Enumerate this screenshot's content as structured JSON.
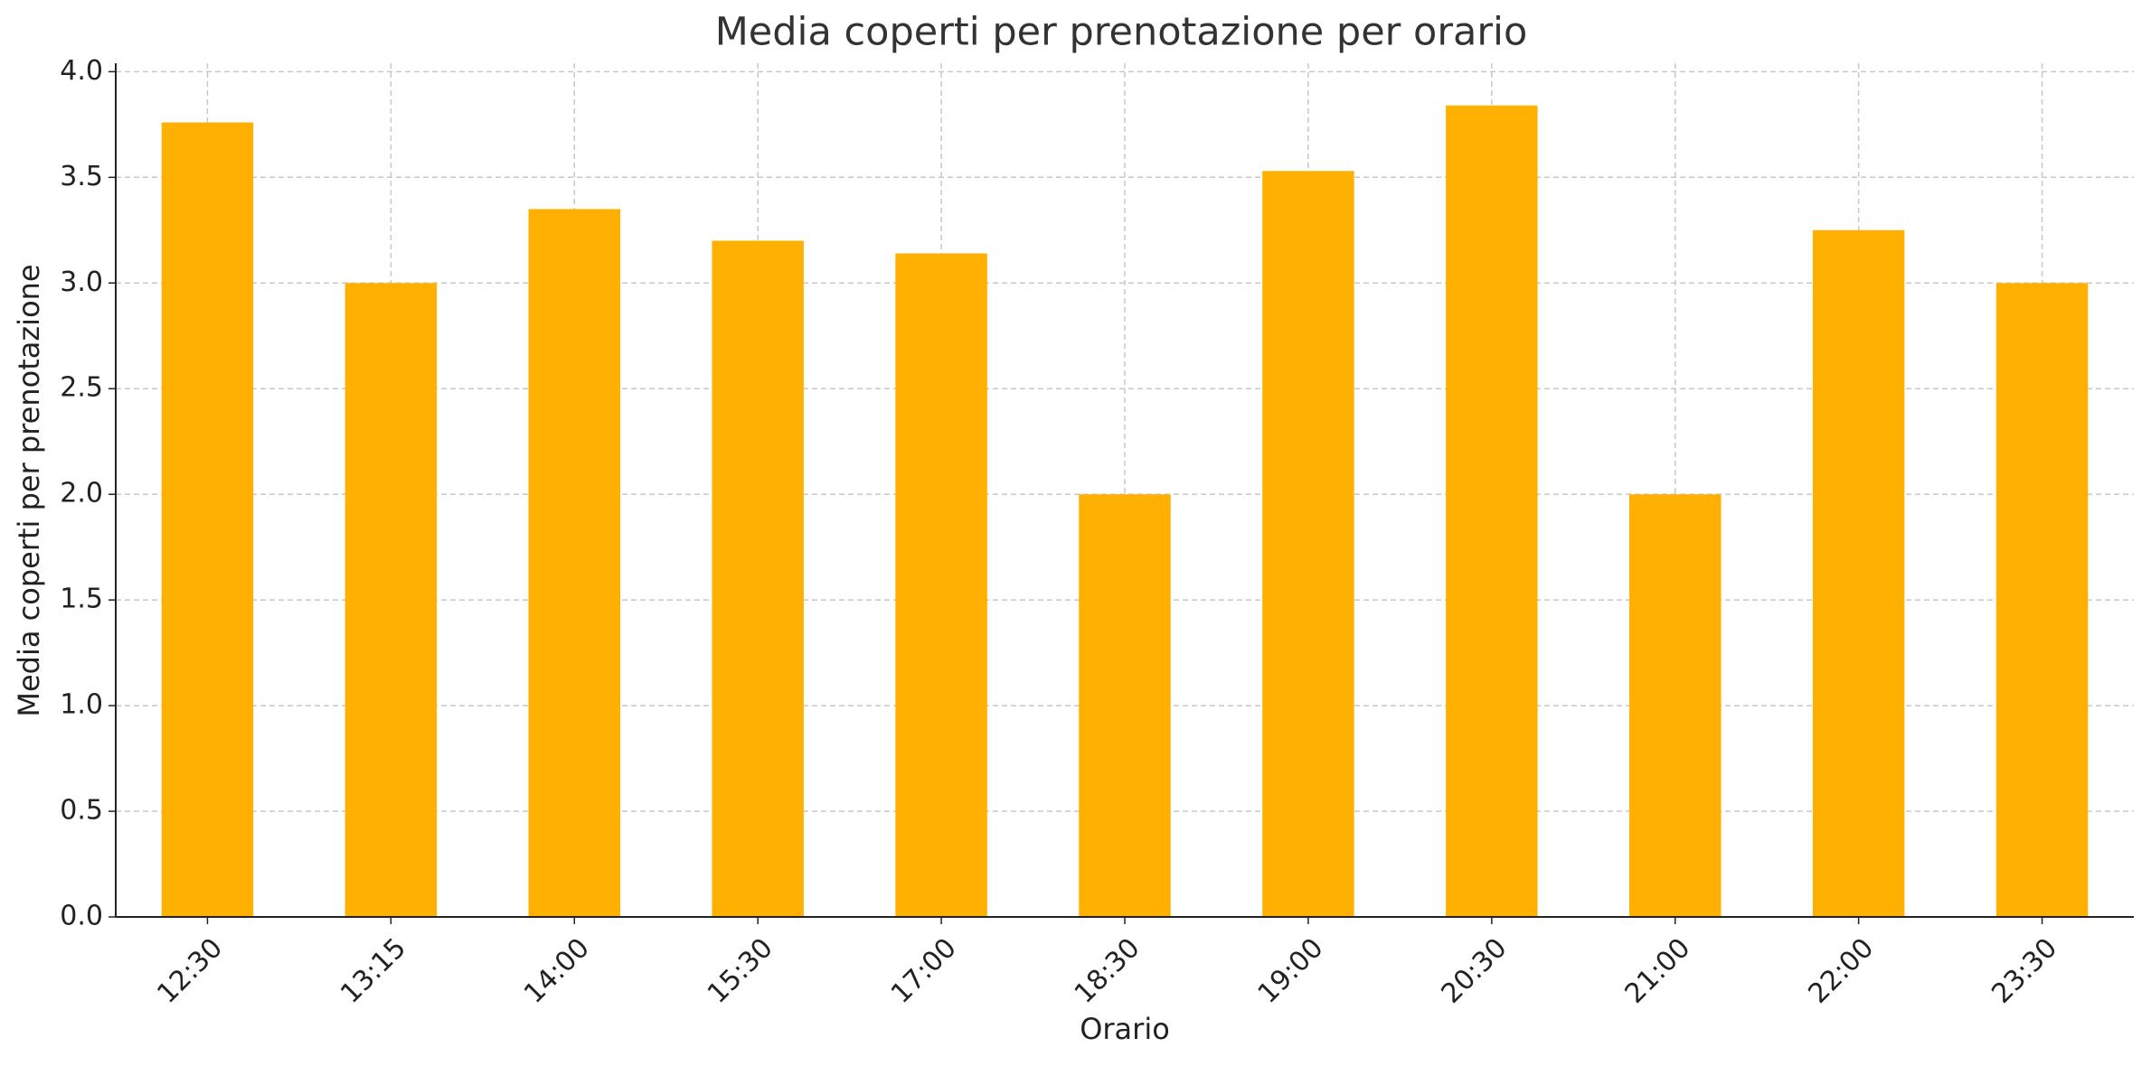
{
  "chart_data": {
    "type": "bar",
    "title": "Media coperti per prenotazione per orario",
    "x_label": "Orario",
    "y_label": "Media coperti per prenotazione",
    "categories": [
      "12:30",
      "13:15",
      "14:00",
      "15:30",
      "17:00",
      "18:30",
      "19:00",
      "20:30",
      "21:00",
      "22:00",
      "23:30"
    ],
    "values": [
      3.76,
      3.0,
      3.35,
      3.2,
      3.14,
      2.0,
      3.53,
      3.84,
      2.0,
      3.25,
      3.0
    ],
    "color": "#ffb000",
    "ylim": [
      0,
      4.04
    ],
    "yticks": [
      {
        "value": 0,
        "label": "0.0"
      },
      {
        "value": 0.5,
        "label": "0.5"
      },
      {
        "value": 1,
        "label": "1.0"
      },
      {
        "value": 1.5,
        "label": "1.5"
      },
      {
        "value": 2,
        "label": "2.0"
      },
      {
        "value": 2.5,
        "label": "2.5"
      },
      {
        "value": 3,
        "label": "3.0"
      },
      {
        "value": 3.5,
        "label": "3.5"
      },
      {
        "value": 4,
        "label": "4.0"
      }
    ],
    "grid": true
  }
}
